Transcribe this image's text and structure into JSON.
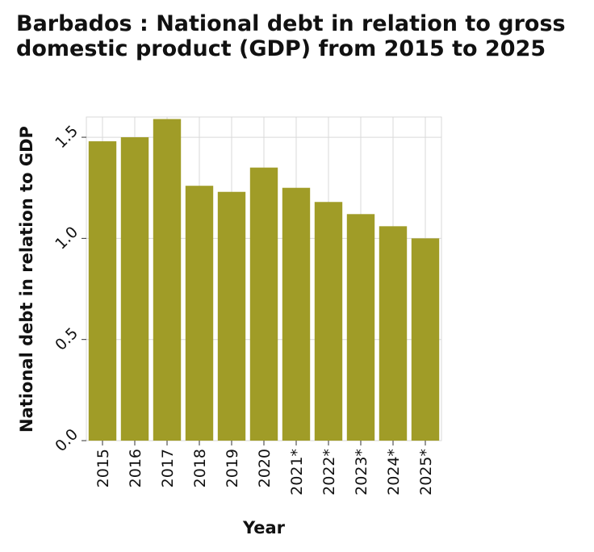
{
  "chart_data": {
    "type": "bar",
    "title": "Barbados : National debt in relation to gross domestic product (GDP) from 2015 to 2025",
    "xlabel": "Year",
    "ylabel": "National debt in relation to GDP",
    "categories": [
      "2015",
      "2016",
      "2017",
      "2018",
      "2019",
      "2020",
      "2021*",
      "2022*",
      "2023*",
      "2024*",
      "2025*"
    ],
    "values": [
      1.48,
      1.5,
      1.59,
      1.26,
      1.23,
      1.35,
      1.25,
      1.18,
      1.12,
      1.06,
      1.0
    ],
    "ylim": [
      0,
      1.6
    ],
    "yticks": [
      "0.0",
      "0.5",
      "1.0",
      "1.5"
    ],
    "grid": true,
    "bar_color": "#a09c27"
  }
}
